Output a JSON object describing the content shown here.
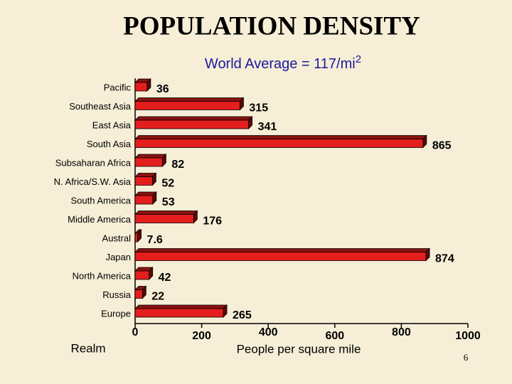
{
  "chart_data": {
    "type": "bar",
    "orientation": "horizontal",
    "title": "POPULATION DENSITY",
    "subtitle": "World Average  = 117/mi",
    "subtitle_superscript": "2",
    "categories": [
      "Pacific",
      "Southeast Asia",
      "East Asia",
      "South Asia",
      "Subsaharan Africa",
      "N. Africa/S.W. Asia",
      "South America",
      "Middle America",
      "Austral",
      "Japan",
      "North America",
      "Russia",
      "Europe"
    ],
    "values": [
      36,
      315,
      341,
      865,
      82,
      52,
      53,
      176,
      7.6,
      874,
      42,
      22,
      265
    ],
    "color": "#e41e1c",
    "xlim": [
      0,
      1000
    ],
    "xticks": [
      0,
      200,
      400,
      600,
      800,
      1000
    ],
    "x_label": "People per square mile",
    "y_label": "Realm",
    "page_number": "6"
  }
}
